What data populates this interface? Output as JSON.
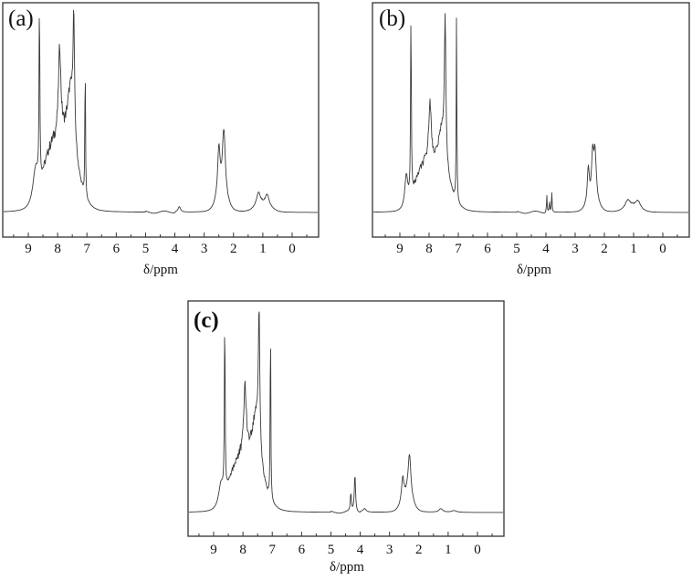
{
  "chart_data": [
    {
      "type": "line",
      "panel": "(a)",
      "title": "",
      "xlabel": "δ/ppm",
      "ylabel": "",
      "x_ticks": [
        9,
        8,
        7,
        6,
        5,
        4,
        3,
        2,
        1,
        0
      ],
      "xlim": [
        9.9,
        -0.9
      ],
      "x_reversed": true,
      "grid": false,
      "legend": null,
      "peaks": [
        {
          "ppm": 8.62,
          "rel_intensity": 1.0,
          "width": 0.015,
          "note": "sharp singlet"
        },
        {
          "ppm": 7.06,
          "rel_intensity": 0.78,
          "width": 0.012,
          "note": "sharp singlet"
        },
        {
          "ppm": 7.45,
          "rel_intensity": 0.62,
          "width": 0.03
        },
        {
          "ppm": 7.93,
          "rel_intensity": 0.48,
          "width": 0.05
        },
        {
          "ppm": 7.55,
          "rel_intensity": 0.38,
          "width": 0.15
        },
        {
          "ppm": 8.75,
          "rel_intensity": 0.19,
          "width": 0.12
        },
        {
          "ppm": 2.5,
          "rel_intensity": 0.26,
          "width": 0.05
        },
        {
          "ppm": 2.33,
          "rel_intensity": 0.36,
          "width": 0.06
        },
        {
          "ppm": 3.85,
          "rel_intensity": 0.03,
          "width": 0.05
        },
        {
          "ppm": 1.15,
          "rel_intensity": 0.07,
          "width": 0.08
        },
        {
          "ppm": 0.85,
          "rel_intensity": 0.06,
          "width": 0.08
        }
      ],
      "broad_bands": [
        {
          "ppm": 7.8,
          "rel_intensity": 0.33,
          "width": 0.55
        },
        {
          "ppm": 8.3,
          "rel_intensity": 0.16,
          "width": 0.35
        },
        {
          "ppm": 2.4,
          "rel_intensity": 0.08,
          "width": 0.25
        },
        {
          "ppm": 1.0,
          "rel_intensity": 0.04,
          "width": 0.35
        }
      ]
    },
    {
      "type": "line",
      "panel": "(b)",
      "title": "",
      "xlabel": "δ/ppm",
      "ylabel": "",
      "x_ticks": [
        9,
        8,
        7,
        6,
        5,
        4,
        3,
        2,
        1,
        0
      ],
      "xlim": [
        9.9,
        -0.9
      ],
      "x_reversed": true,
      "grid": false,
      "legend": null,
      "peaks": [
        {
          "ppm": 8.62,
          "rel_intensity": 1.0,
          "width": 0.015,
          "note": "sharp singlet"
        },
        {
          "ppm": 7.06,
          "rel_intensity": 1.03,
          "width": 0.012,
          "note": "sharp singlet"
        },
        {
          "ppm": 7.45,
          "rel_intensity": 0.74,
          "width": 0.03
        },
        {
          "ppm": 7.97,
          "rel_intensity": 0.33,
          "width": 0.05
        },
        {
          "ppm": 7.55,
          "rel_intensity": 0.26,
          "width": 0.15
        },
        {
          "ppm": 8.78,
          "rel_intensity": 0.17,
          "width": 0.06
        },
        {
          "ppm": 3.97,
          "rel_intensity": 0.09,
          "width": 0.012
        },
        {
          "ppm": 3.88,
          "rel_intensity": 0.06,
          "width": 0.012
        },
        {
          "ppm": 3.8,
          "rel_intensity": 0.11,
          "width": 0.012
        },
        {
          "ppm": 2.55,
          "rel_intensity": 0.18,
          "width": 0.04
        },
        {
          "ppm": 2.4,
          "rel_intensity": 0.22,
          "width": 0.04
        },
        {
          "ppm": 2.32,
          "rel_intensity": 0.25,
          "width": 0.05
        },
        {
          "ppm": 1.2,
          "rel_intensity": 0.04,
          "width": 0.1
        },
        {
          "ppm": 0.85,
          "rel_intensity": 0.04,
          "width": 0.1
        }
      ],
      "broad_bands": [
        {
          "ppm": 7.8,
          "rel_intensity": 0.22,
          "width": 0.55
        },
        {
          "ppm": 8.3,
          "rel_intensity": 0.12,
          "width": 0.35
        },
        {
          "ppm": 2.4,
          "rel_intensity": 0.07,
          "width": 0.25
        },
        {
          "ppm": 1.05,
          "rel_intensity": 0.03,
          "width": 0.35
        }
      ]
    },
    {
      "type": "line",
      "panel": "(c)",
      "title": "",
      "xlabel": "δ/ppm",
      "ylabel": "",
      "x_ticks": [
        9,
        8,
        7,
        6,
        5,
        4,
        3,
        2,
        1,
        0
      ],
      "xlim": [
        9.9,
        -0.9
      ],
      "x_reversed": true,
      "grid": false,
      "legend": null,
      "peaks": [
        {
          "ppm": 8.62,
          "rel_intensity": 1.0,
          "width": 0.015,
          "note": "sharp singlet"
        },
        {
          "ppm": 7.06,
          "rel_intensity": 1.08,
          "width": 0.012,
          "note": "sharp singlet"
        },
        {
          "ppm": 7.45,
          "rel_intensity": 0.76,
          "width": 0.03
        },
        {
          "ppm": 7.93,
          "rel_intensity": 0.38,
          "width": 0.05
        },
        {
          "ppm": 7.55,
          "rel_intensity": 0.3,
          "width": 0.15
        },
        {
          "ppm": 8.75,
          "rel_intensity": 0.12,
          "width": 0.1
        },
        {
          "ppm": 4.32,
          "rel_intensity": 0.1,
          "width": 0.02
        },
        {
          "ppm": 4.18,
          "rel_intensity": 0.21,
          "width": 0.025
        },
        {
          "ppm": 3.85,
          "rel_intensity": 0.02,
          "width": 0.06
        },
        {
          "ppm": 2.55,
          "rel_intensity": 0.13,
          "width": 0.05
        },
        {
          "ppm": 2.32,
          "rel_intensity": 0.25,
          "width": 0.06
        },
        {
          "ppm": 1.25,
          "rel_intensity": 0.02,
          "width": 0.08
        },
        {
          "ppm": 0.8,
          "rel_intensity": 0.01,
          "width": 0.1
        }
      ],
      "broad_bands": [
        {
          "ppm": 7.8,
          "rel_intensity": 0.28,
          "width": 0.55
        },
        {
          "ppm": 8.3,
          "rel_intensity": 0.12,
          "width": 0.35
        },
        {
          "ppm": 2.4,
          "rel_intensity": 0.08,
          "width": 0.25
        }
      ]
    }
  ],
  "panels": [
    {
      "label": "(a)",
      "xlabel": "δ/ppm",
      "ticks": [
        "9",
        "8",
        "7",
        "6",
        "5",
        "4",
        "3",
        "2",
        "1",
        "0"
      ]
    },
    {
      "label": "(b)",
      "xlabel": "δ/ppm",
      "ticks": [
        "9",
        "8",
        "7",
        "6",
        "5",
        "4",
        "3",
        "2",
        "1",
        "0"
      ]
    },
    {
      "label": "(c)",
      "xlabel": "δ/ppm",
      "ticks": [
        "9",
        "8",
        "7",
        "6",
        "5",
        "4",
        "3",
        "2",
        "1",
        "0"
      ]
    }
  ],
  "colors": {
    "frame": "#333333",
    "trace": "#3a3a3a",
    "text": "#111111",
    "background": "#ffffff"
  }
}
